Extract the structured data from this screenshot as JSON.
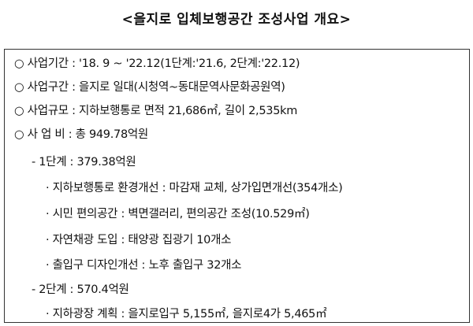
{
  "title": "<을지로 입체보행공간 조성사업 개요>",
  "items": [
    {
      "text": "○ 사업기간 : '18. 9 ~ '22.12(1단계:'21.6, 2단계:'22.12)"
    },
    {
      "text": "○ 사업구간 : 을지로 일대(시청역~동대문역사문화공원역)"
    },
    {
      "text": "○ 사업규모 : 지하보행통로 면적 21,686㎡, 길이 2,535km"
    },
    {
      "text": "○ 사 업 비 : 총 949.78억원"
    },
    {
      "text": "- 1단계 : 379.38억원"
    },
    {
      "text": "· 지하보행통로 환경개선 : 마감재 교체, 상가입면개선(354개소)"
    },
    {
      "text": "· 시민 편의공간 : 벽면갤러리, 편의공간 조성(10.529㎡)"
    },
    {
      "text": "· 자연채광 도입 : 태양광 집광기 10개소"
    },
    {
      "text": "· 출입구 디자인개선 : 노후 출입구 32개소"
    },
    {
      "text": "- 2단계 : 570.4억원"
    },
    {
      "text": "· 지하광장 계획 : 을지로입구 5,155㎡, 을지로4가 5,465㎡"
    }
  ]
}
